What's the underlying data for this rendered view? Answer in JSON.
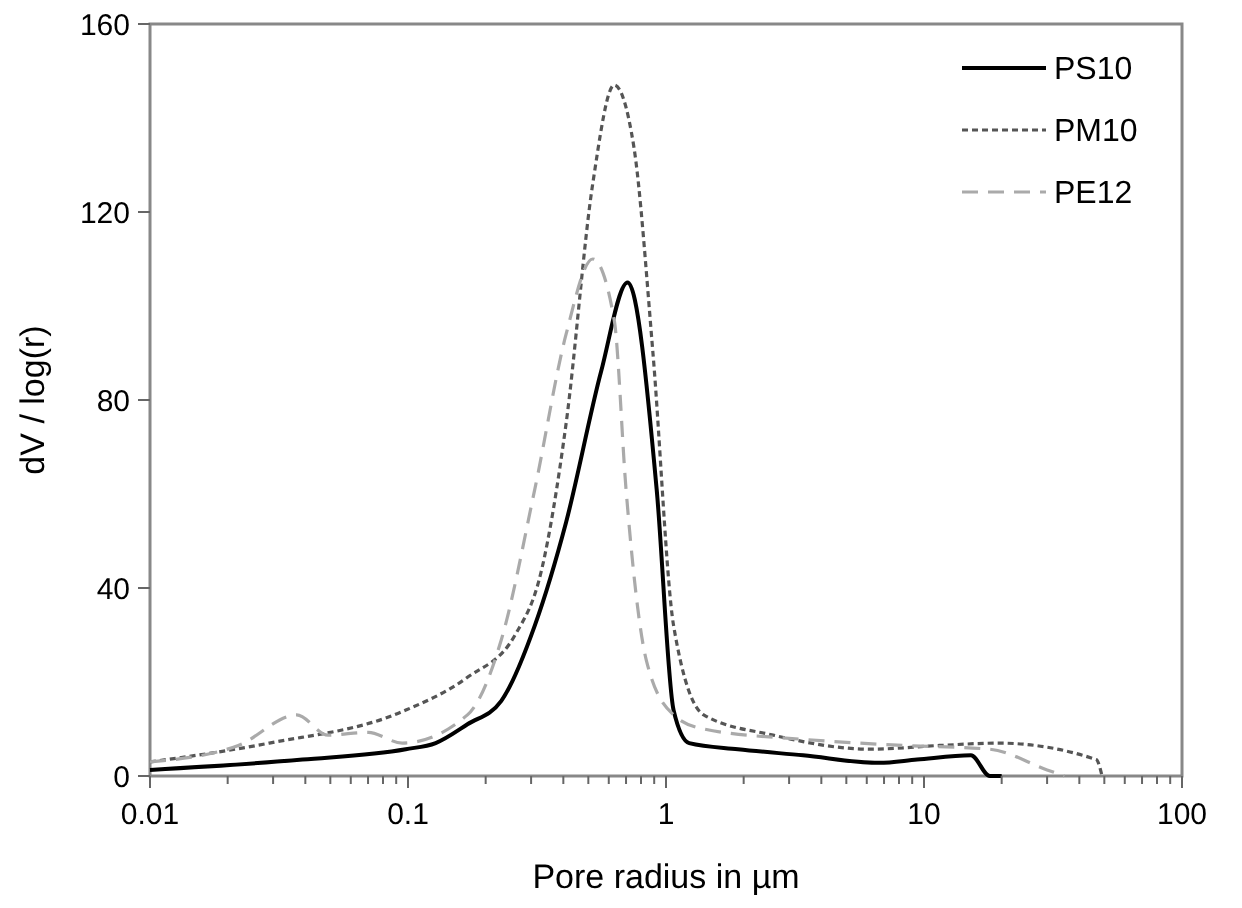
{
  "chart_data": {
    "type": "line",
    "xlabel": "Pore radius in µm",
    "ylabel": "dV / log(r)",
    "log": "x",
    "xlim": [
      0.01,
      100
    ],
    "xticks": [
      0.01,
      0.1,
      1,
      10,
      100
    ],
    "ylim": [
      0,
      160
    ],
    "yticks": [
      0,
      40,
      80,
      120,
      160
    ],
    "grid": false,
    "legend": "top right",
    "series": [
      {
        "name": "PS10",
        "color": "#000000",
        "line_style": "solid",
        "x": [
          0.01,
          0.039,
          0.098,
          0.128,
          0.17,
          0.23,
          0.31,
          0.41,
          0.56,
          0.71,
          0.92,
          1.07,
          1.23,
          1.9,
          3.4,
          6.7,
          9.4,
          15.2,
          18,
          20
        ],
        "values": [
          1.3,
          3.5,
          5.7,
          7,
          11,
          16,
          32,
          54,
          86,
          105,
          61,
          14,
          7,
          5.7,
          4.4,
          2.8,
          3.5,
          4.4,
          0,
          0
        ]
      },
      {
        "name": "PM10",
        "color": "#555555",
        "line_style": "dotted",
        "x": [
          0.01,
          0.029,
          0.095,
          0.17,
          0.26,
          0.33,
          0.41,
          0.52,
          0.63,
          0.75,
          0.89,
          1.07,
          1.4,
          2.6,
          6.2,
          11.5,
          19.4,
          46.5,
          49
        ],
        "values": [
          3,
          7,
          13.7,
          21,
          30,
          44,
          75,
          126,
          147,
          134,
          90,
          32,
          13,
          8.7,
          5.7,
          6.5,
          7,
          3.5,
          0
        ]
      },
      {
        "name": "PE12",
        "color": "#aaaaaa",
        "line_style": "dashed",
        "x": [
          0.01,
          0.022,
          0.037,
          0.049,
          0.07,
          0.095,
          0.17,
          0.23,
          0.31,
          0.41,
          0.52,
          0.63,
          0.7,
          0.84,
          1.07,
          1.4,
          3.4,
          8.3,
          18,
          30,
          35
        ],
        "values": [
          3,
          6.5,
          13,
          8.7,
          9.3,
          7,
          13,
          29,
          61,
          94,
          110,
          97,
          61,
          24.5,
          13,
          10,
          7.8,
          6.5,
          5.7,
          1.3,
          0
        ]
      }
    ]
  }
}
